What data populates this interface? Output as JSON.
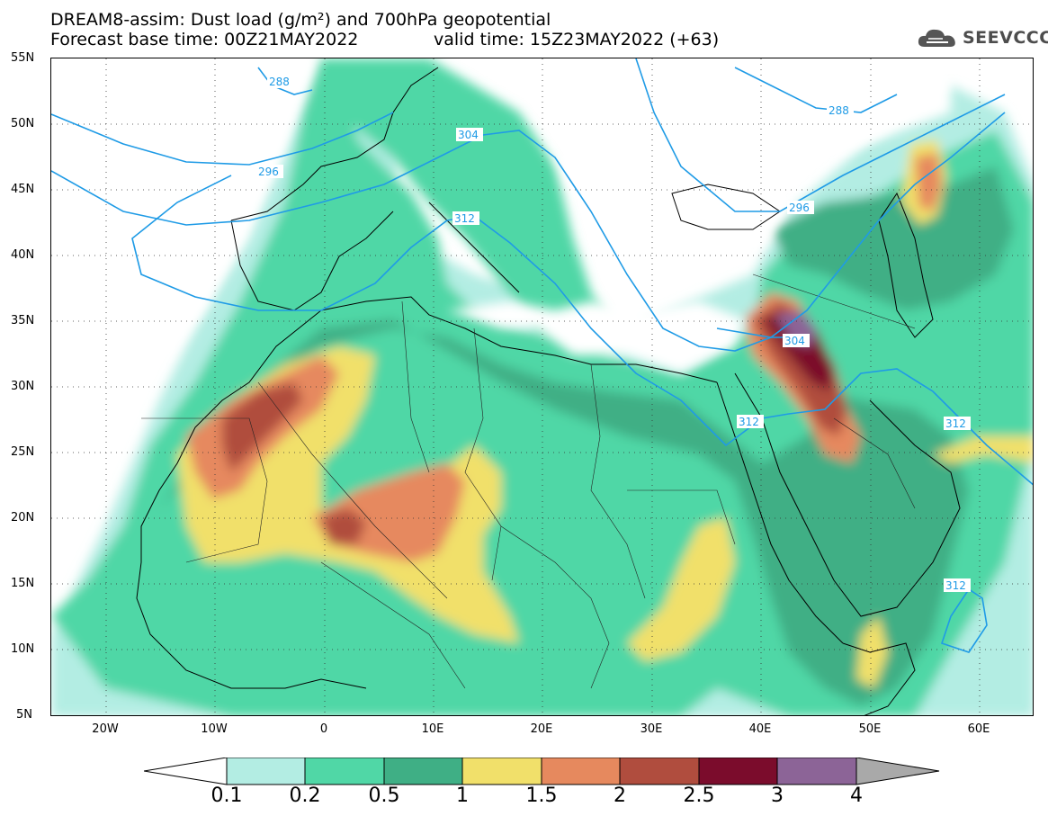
{
  "title": {
    "line1": "DREAM8-assim: Dust load (g/m²) and 700hPa geopotential",
    "line2_left": "Forecast base time: 00Z21MAY2022",
    "line2_right": "valid time: 15Z23MAY2022 (+63)"
  },
  "logo": {
    "text": "SEEVCCC",
    "icon": "cloud-logo-icon"
  },
  "axes": {
    "lat_labels": [
      "55N",
      "50N",
      "45N",
      "40N",
      "35N",
      "30N",
      "25N",
      "20N",
      "15N",
      "10N",
      "5N"
    ],
    "lon_labels": [
      "20W",
      "10W",
      "0",
      "10E",
      "20E",
      "30E",
      "40E",
      "50E",
      "60E"
    ],
    "lat_range": [
      5,
      55
    ],
    "lon_range": [
      -25,
      65
    ]
  },
  "contours": [
    {
      "label": "288"
    },
    {
      "label": "296"
    },
    {
      "label": "304"
    },
    {
      "label": "312"
    },
    {
      "label": "288"
    },
    {
      "label": "296"
    },
    {
      "label": "304"
    },
    {
      "label": "312"
    },
    {
      "label": "312"
    },
    {
      "label": "312"
    }
  ],
  "colorbar": {
    "levels": [
      "0.1",
      "0.2",
      "0.5",
      "1",
      "1.5",
      "2",
      "2.5",
      "3",
      "4"
    ],
    "colors": [
      "#ffffff",
      "#b3ede3",
      "#50d7a6",
      "#3faf85",
      "#f1e06a",
      "#e6895e",
      "#b04d3e",
      "#7b0c2c",
      "#8c6497",
      "#a9a9a9"
    ]
  },
  "map_colors": {
    "c1": "#b3ede3",
    "c2": "#50d7a6",
    "c3": "#3faf85",
    "c4": "#f1e06a",
    "c5": "#e6895e",
    "c6": "#b04d3e",
    "c7": "#7b0c2c",
    "c8": "#8c6497",
    "contour": "#1f9be6"
  }
}
